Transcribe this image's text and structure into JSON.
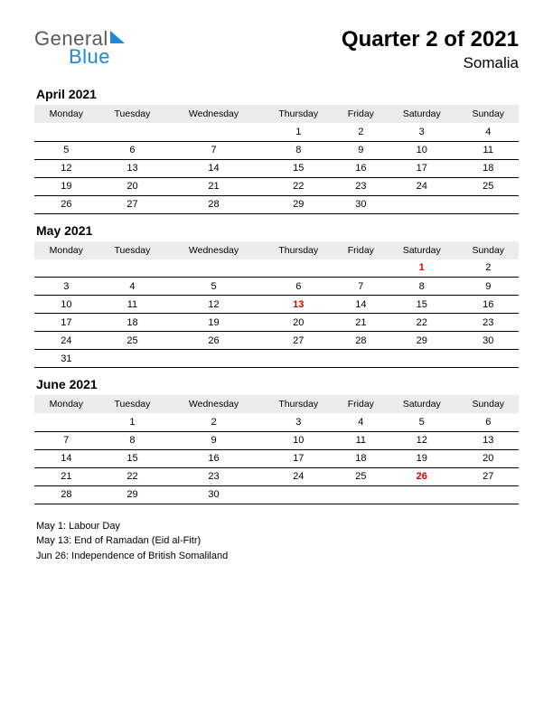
{
  "logo": {
    "text1": "General",
    "text2": "Blue"
  },
  "title": {
    "main": "Quarter 2 of 2021",
    "sub": "Somalia"
  },
  "day_headers": [
    "Monday",
    "Tuesday",
    "Wednesday",
    "Thursday",
    "Friday",
    "Saturday",
    "Sunday"
  ],
  "months": [
    {
      "name": "April 2021",
      "weeks": [
        [
          null,
          null,
          null,
          1,
          2,
          3,
          4
        ],
        [
          5,
          6,
          7,
          8,
          9,
          10,
          11
        ],
        [
          12,
          13,
          14,
          15,
          16,
          17,
          18
        ],
        [
          19,
          20,
          21,
          22,
          23,
          24,
          25
        ],
        [
          26,
          27,
          28,
          29,
          30,
          null,
          null
        ]
      ],
      "holidays": []
    },
    {
      "name": "May 2021",
      "weeks": [
        [
          null,
          null,
          null,
          null,
          null,
          1,
          2
        ],
        [
          3,
          4,
          5,
          6,
          7,
          8,
          9
        ],
        [
          10,
          11,
          12,
          13,
          14,
          15,
          16
        ],
        [
          17,
          18,
          19,
          20,
          21,
          22,
          23
        ],
        [
          24,
          25,
          26,
          27,
          28,
          29,
          30
        ],
        [
          31,
          null,
          null,
          null,
          null,
          null,
          null
        ]
      ],
      "holidays": [
        1,
        13
      ]
    },
    {
      "name": "June 2021",
      "weeks": [
        [
          null,
          1,
          2,
          3,
          4,
          5,
          6
        ],
        [
          7,
          8,
          9,
          10,
          11,
          12,
          13
        ],
        [
          14,
          15,
          16,
          17,
          18,
          19,
          20
        ],
        [
          21,
          22,
          23,
          24,
          25,
          26,
          27
        ],
        [
          28,
          29,
          30,
          null,
          null,
          null,
          null
        ]
      ],
      "holidays": [
        26
      ]
    }
  ],
  "holiday_list": [
    "May 1: Labour Day",
    "May 13: End of Ramadan (Eid al-Fitr)",
    "Jun 26: Independence of British Somaliland"
  ],
  "colors": {
    "holiday_text": "#d40000",
    "header_bg": "#ececec",
    "logo_blue": "#1e88d2",
    "logo_gray": "#5b5b5b"
  }
}
